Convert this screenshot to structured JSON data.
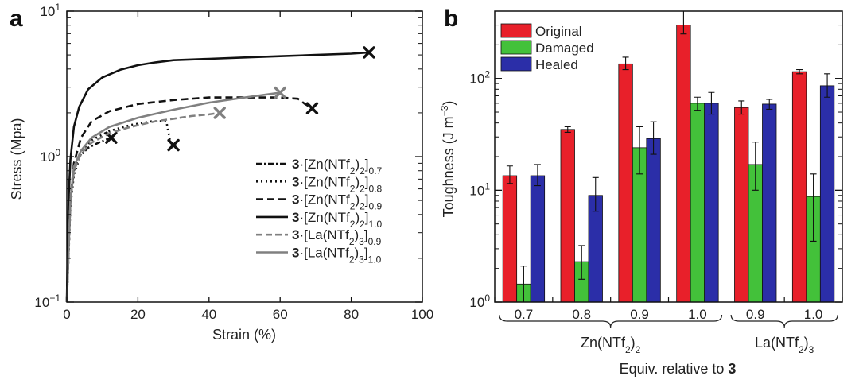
{
  "chart_data": [
    {
      "panel_label": "a",
      "type": "line",
      "xlabel": "Strain (%)",
      "ylabel": "Stress (Mpa)",
      "xlim": [
        0,
        100
      ],
      "ylim": [
        0.1,
        10
      ],
      "yscale": "log",
      "xticks": [
        "0",
        "20",
        "40",
        "60",
        "80",
        "100"
      ],
      "yticks": [
        {
          "base": "10",
          "exp": "−1",
          "value": 0.1
        },
        {
          "base": "10",
          "exp": "0",
          "value": 1
        },
        {
          "base": "10",
          "exp": "1",
          "value": 10
        }
      ],
      "legend_position": "bottom-right",
      "series": [
        {
          "prefix": "3",
          "core": "[Zn(NTf",
          "sub2": "2",
          "close": ")",
          "sub3": "2",
          "tail": "]",
          "sub4": "0.7",
          "color": "#111111",
          "dash": "7,3,2,3",
          "gray": false,
          "x": [
            0,
            1,
            2,
            3.5,
            6,
            9,
            12.5
          ],
          "y": [
            0.1,
            0.5,
            0.8,
            1.0,
            1.15,
            1.25,
            1.35
          ],
          "end_marker": true
        },
        {
          "prefix": "3",
          "core": "[Zn(NTf",
          "sub2": "2",
          "close": ")",
          "sub3": "2",
          "tail": "]",
          "sub4": "0.8",
          "color": "#111111",
          "dash": "2,4",
          "gray": false,
          "x": [
            0,
            1,
            2,
            4,
            7,
            12,
            18,
            24,
            28,
            28.5,
            29,
            30
          ],
          "y": [
            0.1,
            0.45,
            0.75,
            1.05,
            1.3,
            1.5,
            1.65,
            1.75,
            1.75,
            1.5,
            1.3,
            1.2
          ],
          "end_marker": true
        },
        {
          "prefix": "3",
          "core": "[Zn(NTf",
          "sub2": "2",
          "close": ")",
          "sub3": "2",
          "tail": "]",
          "sub4": "0.9",
          "color": "#111111",
          "dash": "9,5",
          "gray": false,
          "x": [
            0,
            1,
            2,
            4,
            7,
            12,
            20,
            30,
            40,
            50,
            60,
            65,
            67,
            69
          ],
          "y": [
            0.1,
            0.5,
            0.9,
            1.35,
            1.75,
            2.05,
            2.3,
            2.45,
            2.55,
            2.55,
            2.55,
            2.5,
            2.3,
            2.15
          ],
          "end_marker": true
        },
        {
          "prefix": "3",
          "core": "[Zn(NTf",
          "sub2": "2",
          "close": ")",
          "sub3": "2",
          "tail": "]",
          "sub4": "1.0",
          "color": "#111111",
          "dash": "",
          "gray": false,
          "x": [
            0,
            0.5,
            1,
            2,
            3.5,
            6,
            10,
            15,
            20,
            25,
            30,
            40,
            50,
            60,
            70,
            80,
            85
          ],
          "y": [
            0.1,
            0.5,
            0.95,
            1.6,
            2.2,
            2.9,
            3.5,
            3.95,
            4.25,
            4.45,
            4.6,
            4.7,
            4.8,
            4.9,
            5.0,
            5.1,
            5.2
          ],
          "end_marker": true
        },
        {
          "prefix": "3",
          "core": "[La(NTf",
          "sub2": "2",
          "close": ")",
          "sub3": "3",
          "tail": "]",
          "sub4": "0.9",
          "color": "#808080",
          "dash": "8,4",
          "gray": true,
          "x": [
            0,
            1,
            2,
            4,
            7,
            12,
            18,
            25,
            30,
            35,
            40,
            43
          ],
          "y": [
            0.1,
            0.5,
            0.8,
            1.05,
            1.25,
            1.45,
            1.6,
            1.75,
            1.82,
            1.9,
            1.95,
            2.0
          ],
          "end_marker": true
        },
        {
          "prefix": "3",
          "core": "[La(NTf",
          "sub2": "2",
          "close": ")",
          "sub3": "3",
          "tail": "]",
          "sub4": "1.0",
          "color": "#808080",
          "dash": "",
          "gray": true,
          "x": [
            0,
            1,
            2,
            4,
            7,
            12,
            20,
            30,
            40,
            50,
            60
          ],
          "y": [
            0.1,
            0.5,
            0.85,
            1.1,
            1.35,
            1.6,
            1.85,
            2.1,
            2.35,
            2.55,
            2.75
          ],
          "end_marker": true
        }
      ]
    },
    {
      "panel_label": "b",
      "type": "bar",
      "ylabel_main": "Toughness (J m",
      "ylabel_sup": "−3",
      "ylabel_close": ")",
      "yscale": "log",
      "ylim": [
        1,
        400
      ],
      "yticks": [
        {
          "base": "10",
          "exp": "0",
          "value": 1
        },
        {
          "base": "10",
          "exp": "1",
          "value": 10
        },
        {
          "base": "10",
          "exp": "2",
          "value": 100
        }
      ],
      "categories": [
        "0.7",
        "0.8",
        "0.9",
        "1.0",
        "0.9",
        "1.0"
      ],
      "groups": [
        {
          "core": "Zn(NTf",
          "sub1": "2",
          "close": ")",
          "sub2": "2",
          "span": [
            0,
            3
          ]
        },
        {
          "core": "La(NTf",
          "sub1": "2",
          "close": ")",
          "sub2": "3",
          "span": [
            4,
            5
          ]
        }
      ],
      "xlabel_main": "Equiv. relative to ",
      "xlabel_bold": "3",
      "legend_position": "top-left",
      "series": [
        {
          "name": "Original",
          "color": "#e8202a",
          "values": [
            13.5,
            35,
            135,
            300,
            55,
            115
          ],
          "err_hi": [
            16.5,
            37,
            155,
            400,
            63,
            120
          ],
          "err_lo": [
            11.5,
            33,
            120,
            250,
            48,
            110
          ]
        },
        {
          "name": "Damaged",
          "color": "#43c13a",
          "values": [
            1.45,
            2.3,
            24,
            60,
            17,
            8.8
          ],
          "err_hi": [
            2.1,
            3.2,
            37,
            68,
            27,
            14
          ],
          "err_lo": [
            1.0,
            1.6,
            14,
            52,
            10,
            3.5
          ]
        },
        {
          "name": "Healed",
          "color": "#2b2ea8",
          "values": [
            13.5,
            9,
            29,
            60,
            59,
            86
          ],
          "err_hi": [
            17,
            13,
            41,
            75,
            65,
            110
          ],
          "err_lo": [
            11,
            6.5,
            21,
            48,
            53,
            68
          ]
        }
      ]
    }
  ]
}
